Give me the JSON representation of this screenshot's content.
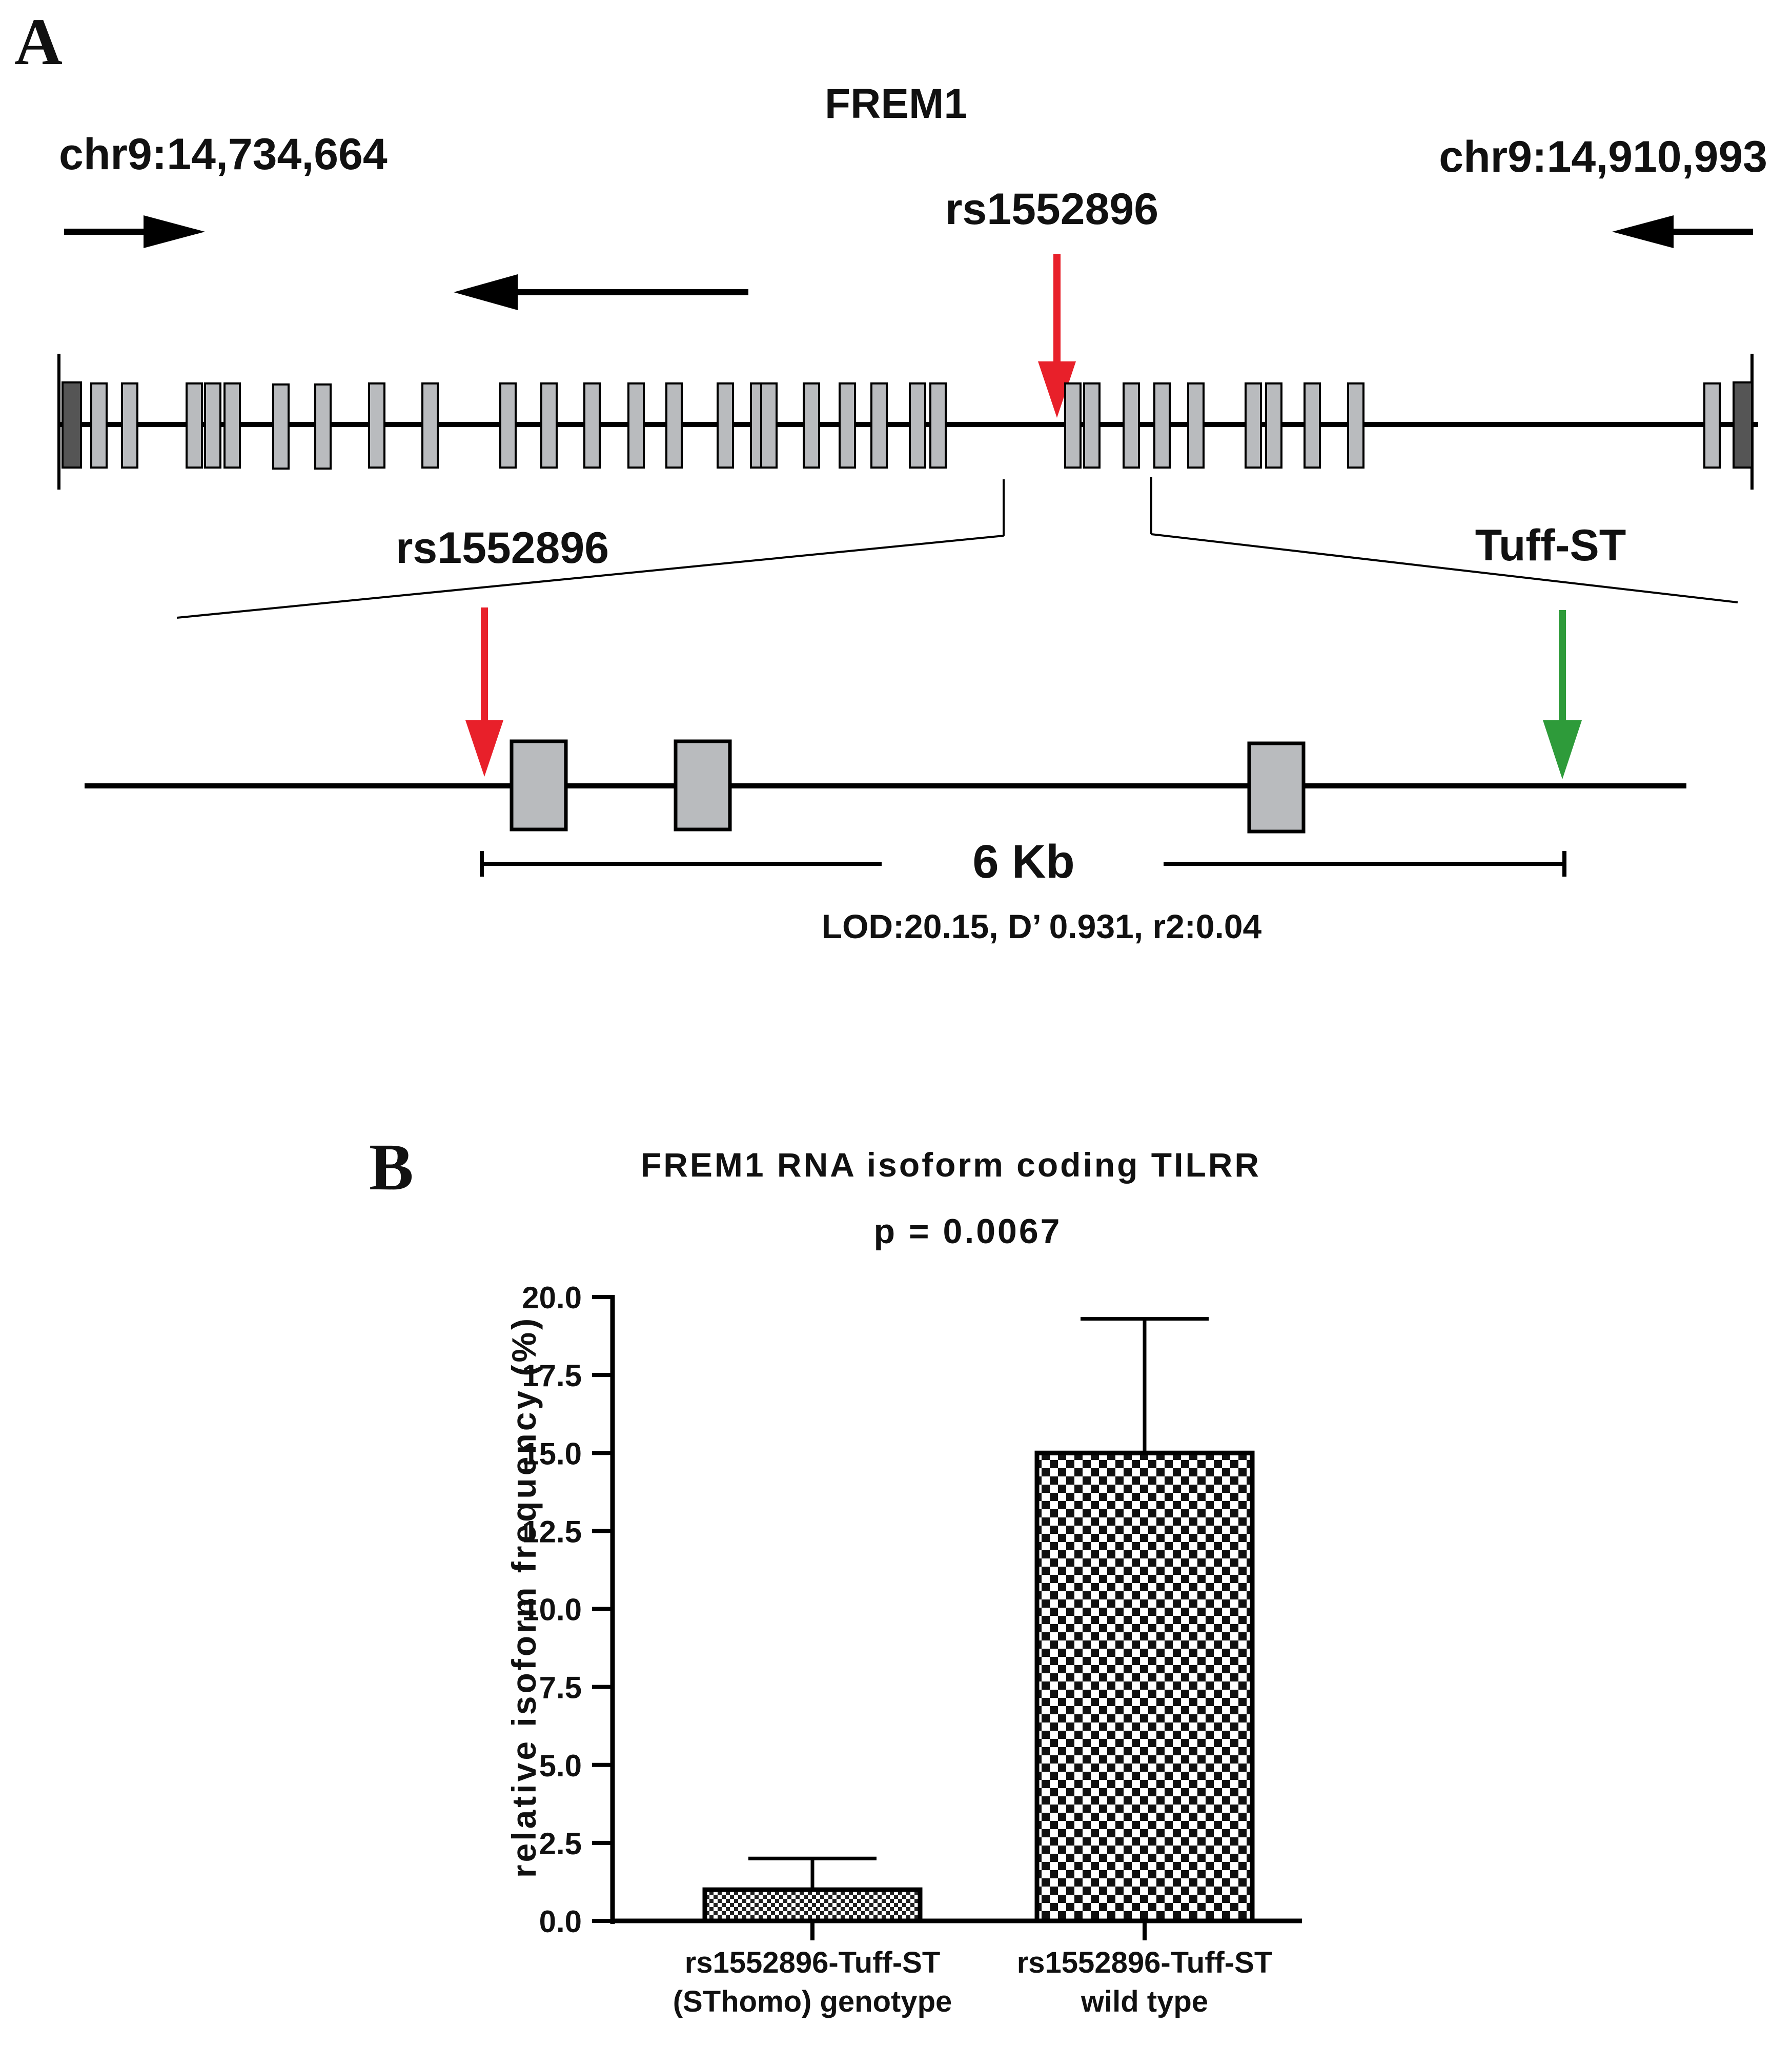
{
  "panel_a": {
    "letter": "A",
    "gene": "FREM1",
    "coord_left": "chr9:14,734,664",
    "coord_right": "chr9:14,910,993",
    "snp_top": "rs1552896",
    "snp_zoom": "rs1552896",
    "tuff_label": "Tuff-ST",
    "scale_label": "6 Kb",
    "ld_stats": "LOD:20.15, D’ 0.931, r2:0.04",
    "colors": {
      "snp_arrow": "#e8202a",
      "tuff_arrow": "#2e9b3a",
      "exon_fill": "#b9bbbe",
      "utr_fill": "#555555"
    }
  },
  "panel_b": {
    "letter": "B"
  },
  "chart_data": {
    "type": "bar",
    "title": "FREM1 RNA isoform coding TILRR",
    "subtitle": "p = 0.0067",
    "ylabel": "relative isoform frequency (%)",
    "xlabel": "",
    "ylim": [
      0,
      20
    ],
    "yticks": [
      "0.0",
      "2.5",
      "5.0",
      "7.5",
      "10.0",
      "12.5",
      "15.0",
      "17.5",
      "20.0"
    ],
    "categories": [
      [
        "rs1552896-Tuff-ST",
        "(SThomo) genotype"
      ],
      [
        "rs1552896-Tuff-ST",
        "wild type"
      ]
    ],
    "values": [
      1.0,
      15.0
    ],
    "error_upper": [
      2.0,
      19.3
    ],
    "patterns": [
      "fine-checker",
      "coarse-checker"
    ],
    "grid": false
  }
}
